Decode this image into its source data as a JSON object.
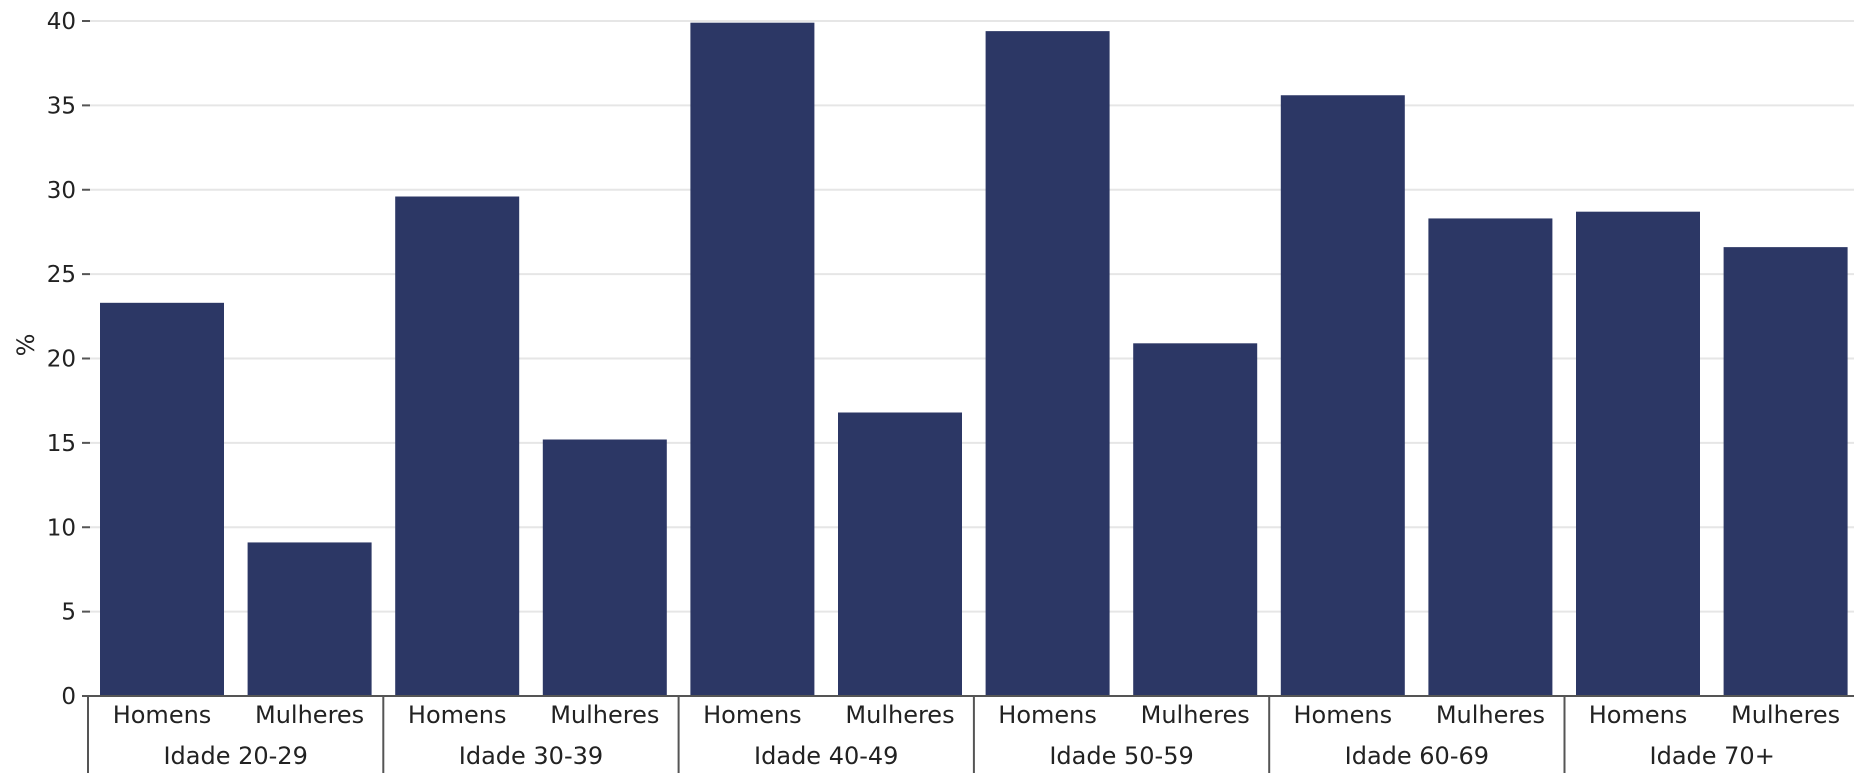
{
  "chart_data": {
    "type": "bar",
    "ylabel": "%",
    "ylim": [
      0,
      40
    ],
    "yticks": [
      "0",
      "5",
      "10",
      "15",
      "20",
      "25",
      "30",
      "35",
      "40"
    ],
    "grid": true,
    "bar_color": "#2c3765",
    "groups": [
      {
        "label": "Idade 20-29",
        "bars": [
          {
            "label": "Homens",
            "value": 23.3
          },
          {
            "label": "Mulheres",
            "value": 9.1
          }
        ]
      },
      {
        "label": "Idade 30-39",
        "bars": [
          {
            "label": "Homens",
            "value": 29.6
          },
          {
            "label": "Mulheres",
            "value": 15.2
          }
        ]
      },
      {
        "label": "Idade 40-49",
        "bars": [
          {
            "label": "Homens",
            "value": 39.9
          },
          {
            "label": "Mulheres",
            "value": 16.8
          }
        ]
      },
      {
        "label": "Idade 50-59",
        "bars": [
          {
            "label": "Homens",
            "value": 39.4
          },
          {
            "label": "Mulheres",
            "value": 20.9
          }
        ]
      },
      {
        "label": "Idade 60-69",
        "bars": [
          {
            "label": "Homens",
            "value": 35.6
          },
          {
            "label": "Mulheres",
            "value": 28.3
          }
        ]
      },
      {
        "label": "Idade 70+",
        "bars": [
          {
            "label": "Homens",
            "value": 28.7
          },
          {
            "label": "Mulheres",
            "value": 26.6
          }
        ]
      }
    ]
  }
}
